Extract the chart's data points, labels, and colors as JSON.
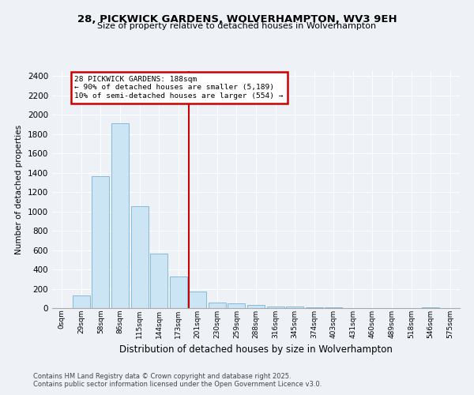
{
  "title1": "28, PICKWICK GARDENS, WOLVERHAMPTON, WV3 9EH",
  "title2": "Size of property relative to detached houses in Wolverhampton",
  "xlabel": "Distribution of detached houses by size in Wolverhampton",
  "ylabel": "Number of detached properties",
  "footnote1": "Contains HM Land Registry data © Crown copyright and database right 2025.",
  "footnote2": "Contains public sector information licensed under the Open Government Licence v3.0.",
  "bin_labels": [
    "0sqm",
    "29sqm",
    "58sqm",
    "86sqm",
    "115sqm",
    "144sqm",
    "173sqm",
    "201sqm",
    "230sqm",
    "259sqm",
    "288sqm",
    "316sqm",
    "345sqm",
    "374sqm",
    "403sqm",
    "431sqm",
    "460sqm",
    "489sqm",
    "518sqm",
    "546sqm",
    "575sqm"
  ],
  "bar_values": [
    0,
    130,
    1360,
    1910,
    1050,
    560,
    330,
    170,
    60,
    50,
    30,
    20,
    15,
    10,
    5,
    2,
    2,
    2,
    2,
    5,
    2
  ],
  "bar_color": "#cce5f5",
  "bar_edge_color": "#7ab0d4",
  "annotation_title": "28 PICKWICK GARDENS: 188sqm",
  "annotation_line1": "← 90% of detached houses are smaller (5,189)",
  "annotation_line2": "10% of semi-detached houses are larger (554) →",
  "annotation_box_color": "#ffffff",
  "annotation_box_edge": "#cc0000",
  "red_line_color": "#cc0000",
  "background_color": "#eef2f7",
  "grid_color": "#ffffff",
  "ylim": [
    0,
    2450
  ],
  "yticks": [
    0,
    200,
    400,
    600,
    800,
    1000,
    1200,
    1400,
    1600,
    1800,
    2000,
    2200,
    2400
  ],
  "red_line_index": 6.536
}
